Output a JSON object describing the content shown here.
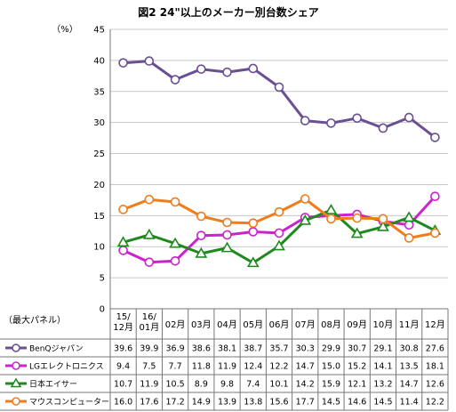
{
  "chart_data": {
    "type": "line",
    "title": "図2  24\"以上のメーカー別台数シェア",
    "yunit": "（%）",
    "ylim": [
      0,
      45
    ],
    "yticks": [
      0,
      5,
      10,
      15,
      20,
      25,
      30,
      35,
      40,
      45
    ],
    "table_header": "（最大パネル）",
    "categories": [
      [
        "15/",
        "12月"
      ],
      [
        "16/",
        "01月"
      ],
      [
        "02月"
      ],
      [
        "03月"
      ],
      [
        "04月"
      ],
      [
        "05月"
      ],
      [
        "06月"
      ],
      [
        "07月"
      ],
      [
        "08月"
      ],
      [
        "09月"
      ],
      [
        "10月"
      ],
      [
        "11月"
      ],
      [
        "12月"
      ]
    ],
    "series": [
      {
        "name": "BenQジャパン",
        "color": "#6a4f93",
        "marker": "circle",
        "values": [
          39.6,
          39.9,
          36.9,
          38.6,
          38.1,
          38.7,
          35.7,
          30.3,
          29.9,
          30.7,
          29.1,
          30.8,
          27.6
        ]
      },
      {
        "name": "LGエレクトロニクス",
        "color": "#cc22cc",
        "marker": "circle",
        "values": [
          9.4,
          7.5,
          7.7,
          11.8,
          11.9,
          12.4,
          12.2,
          14.7,
          15.0,
          15.2,
          14.1,
          13.5,
          18.1
        ]
      },
      {
        "name": "日本エイサー",
        "color": "#1e8a1e",
        "marker": "triangle",
        "values": [
          10.7,
          11.9,
          10.5,
          8.9,
          9.8,
          7.4,
          10.1,
          14.2,
          15.9,
          12.1,
          13.2,
          14.7,
          12.6
        ]
      },
      {
        "name": "マウスコンピューター",
        "color": "#f07c1b",
        "marker": "circle",
        "values": [
          16.0,
          17.6,
          17.2,
          14.9,
          13.9,
          13.8,
          15.6,
          17.7,
          14.5,
          14.6,
          14.5,
          11.4,
          12.2
        ]
      }
    ]
  }
}
